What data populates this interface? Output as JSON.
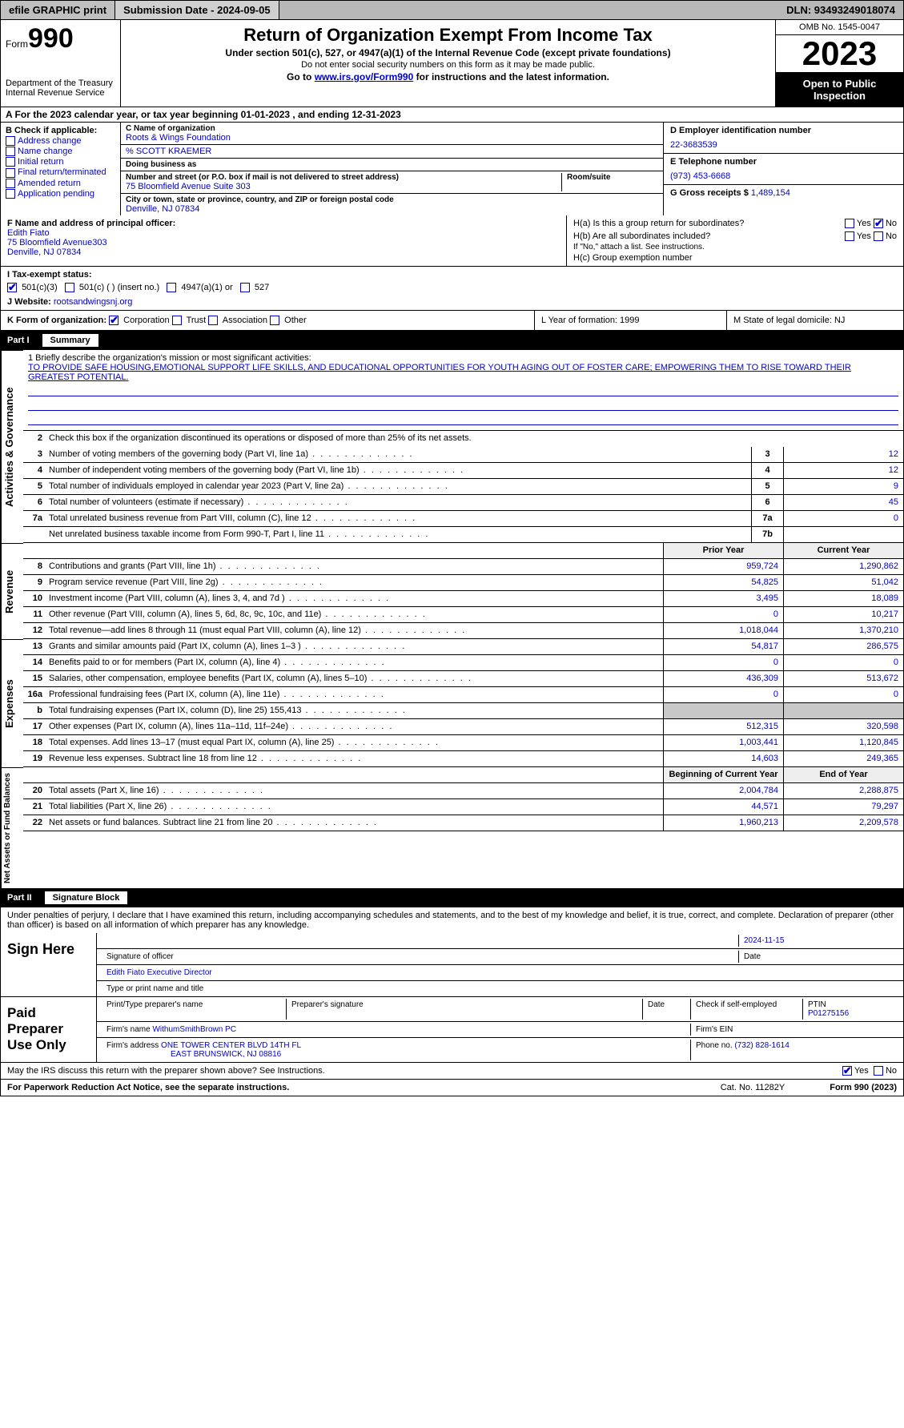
{
  "topbar": {
    "efile": "efile GRAPHIC print",
    "sub_date_label": "Submission Date - 2024-09-05",
    "dln": "DLN: 93493249018074"
  },
  "header": {
    "form_label": "Form",
    "form_num": "990",
    "dept": "Department of the Treasury\nInternal Revenue Service",
    "title": "Return of Organization Exempt From Income Tax",
    "sub1": "Under section 501(c), 527, or 4947(a)(1) of the Internal Revenue Code (except private foundations)",
    "sub2": "Do not enter social security numbers on this form as it may be made public.",
    "sub3_pre": "Go to ",
    "sub3_link": "www.irs.gov/Form990",
    "sub3_post": " for instructions and the latest information.",
    "omb": "OMB No. 1545-0047",
    "year": "2023",
    "open": "Open to Public Inspection"
  },
  "row_a": "A   For the 2023 calendar year, or tax year beginning 01-01-2023   , and ending 12-31-2023",
  "col_b": {
    "title": "B Check if applicable:",
    "opts": [
      "Address change",
      "Name change",
      "Initial return",
      "Final return/terminated",
      "Amended return",
      "Application pending"
    ]
  },
  "col_c": {
    "name_lbl": "C Name of organization",
    "name": "Roots & Wings Foundation",
    "care_of": "% SCOTT KRAEMER",
    "dba_lbl": "Doing business as",
    "dba": "",
    "addr_lbl": "Number and street (or P.O. box if mail is not delivered to street address)",
    "room_lbl": "Room/suite",
    "addr": "75 Bloomfield Avenue Suite 303",
    "city_lbl": "City or town, state or province, country, and ZIP or foreign postal code",
    "city": "Denville, NJ  07834"
  },
  "col_d": {
    "ein_lbl": "D Employer identification number",
    "ein": "22-3683539",
    "tel_lbl": "E Telephone number",
    "tel": "(973) 453-6668",
    "gross_lbl": "G Gross receipts $",
    "gross": "1,489,154"
  },
  "row_f": {
    "lbl": "F  Name and address of principal officer:",
    "name": "Edith Fiato",
    "addr1": "75 Bloomfield Avenue303",
    "addr2": "Denville, NJ  07834"
  },
  "row_h": {
    "ha": "H(a)  Is this a group return for subordinates?",
    "ha_yes": "Yes",
    "ha_no": "No",
    "hb": "H(b)  Are all subordinates included?",
    "hb_yes": "Yes",
    "hb_no": "No",
    "hb_note": "If \"No,\" attach a list. See instructions.",
    "hc": "H(c)  Group exemption number  "
  },
  "row_i": {
    "lbl": "I   Tax-exempt status:",
    "o1": "501(c)(3)",
    "o2": "501(c) (  ) (insert no.)",
    "o3": "4947(a)(1) or",
    "o4": "527"
  },
  "row_j": {
    "lbl": "J   Website: ",
    "val": "rootsandwingsnj.org"
  },
  "row_k": {
    "lbl": "K Form of organization:",
    "o1": "Corporation",
    "o2": "Trust",
    "o3": "Association",
    "o4": "Other"
  },
  "row_l": "L Year of formation: 1999",
  "row_m": "M State of legal domicile: NJ",
  "part1": {
    "tag": "Part I",
    "title": "Summary",
    "mission_lbl": "1   Briefly describe the organization's mission or most significant activities:",
    "mission": "TO PROVIDE SAFE HOUSING,EMOTIONAL SUPPORT LIFE SKILLS, AND EDUCATIONAL OPPORTUNITIES FOR YOUTH AGING OUT OF FOSTER CARE; EMPOWERING THEM TO RISE TOWARD THEIR GREATEST POTENTIAL.",
    "line2": "Check this box      if the organization discontinued its operations or disposed of more than 25% of its net assets."
  },
  "vlabels": {
    "ag": "Activities & Governance",
    "rev": "Revenue",
    "exp": "Expenses",
    "net": "Net Assets or Fund Balances"
  },
  "gov_lines": [
    {
      "n": "3",
      "d": "Number of voting members of the governing body (Part VI, line 1a)",
      "box": "3",
      "v": "12"
    },
    {
      "n": "4",
      "d": "Number of independent voting members of the governing body (Part VI, line 1b)",
      "box": "4",
      "v": "12"
    },
    {
      "n": "5",
      "d": "Total number of individuals employed in calendar year 2023 (Part V, line 2a)",
      "box": "5",
      "v": "9"
    },
    {
      "n": "6",
      "d": "Total number of volunteers (estimate if necessary)",
      "box": "6",
      "v": "45"
    },
    {
      "n": "7a",
      "d": "Total unrelated business revenue from Part VIII, column (C), line 12",
      "box": "7a",
      "v": "0"
    },
    {
      "n": "",
      "d": "Net unrelated business taxable income from Form 990-T, Part I, line 11",
      "box": "7b",
      "v": ""
    }
  ],
  "pycy_header": {
    "py": "Prior Year",
    "cy": "Current Year"
  },
  "rev_lines": [
    {
      "n": "8",
      "d": "Contributions and grants (Part VIII, line 1h)",
      "py": "959,724",
      "cy": "1,290,862"
    },
    {
      "n": "9",
      "d": "Program service revenue (Part VIII, line 2g)",
      "py": "54,825",
      "cy": "51,042"
    },
    {
      "n": "10",
      "d": "Investment income (Part VIII, column (A), lines 3, 4, and 7d )",
      "py": "3,495",
      "cy": "18,089"
    },
    {
      "n": "11",
      "d": "Other revenue (Part VIII, column (A), lines 5, 6d, 8c, 9c, 10c, and 11e)",
      "py": "0",
      "cy": "10,217"
    },
    {
      "n": "12",
      "d": "Total revenue—add lines 8 through 11 (must equal Part VIII, column (A), line 12)",
      "py": "1,018,044",
      "cy": "1,370,210"
    }
  ],
  "exp_lines": [
    {
      "n": "13",
      "d": "Grants and similar amounts paid (Part IX, column (A), lines 1–3 )",
      "py": "54,817",
      "cy": "286,575"
    },
    {
      "n": "14",
      "d": "Benefits paid to or for members (Part IX, column (A), line 4)",
      "py": "0",
      "cy": "0"
    },
    {
      "n": "15",
      "d": "Salaries, other compensation, employee benefits (Part IX, column (A), lines 5–10)",
      "py": "436,309",
      "cy": "513,672"
    },
    {
      "n": "16a",
      "d": "Professional fundraising fees (Part IX, column (A), line 11e)",
      "py": "0",
      "cy": "0"
    },
    {
      "n": "b",
      "d": "Total fundraising expenses (Part IX, column (D), line 25) 155,413",
      "py": "",
      "cy": "",
      "grey": true
    },
    {
      "n": "17",
      "d": "Other expenses (Part IX, column (A), lines 11a–11d, 11f–24e)",
      "py": "512,315",
      "cy": "320,598"
    },
    {
      "n": "18",
      "d": "Total expenses. Add lines 13–17 (must equal Part IX, column (A), line 25)",
      "py": "1,003,441",
      "cy": "1,120,845"
    },
    {
      "n": "19",
      "d": "Revenue less expenses. Subtract line 18 from line 12",
      "py": "14,603",
      "cy": "249,365"
    }
  ],
  "net_header": {
    "py": "Beginning of Current Year",
    "cy": "End of Year"
  },
  "net_lines": [
    {
      "n": "20",
      "d": "Total assets (Part X, line 16)",
      "py": "2,004,784",
      "cy": "2,288,875"
    },
    {
      "n": "21",
      "d": "Total liabilities (Part X, line 26)",
      "py": "44,571",
      "cy": "79,297"
    },
    {
      "n": "22",
      "d": "Net assets or fund balances. Subtract line 21 from line 20",
      "py": "1,960,213",
      "cy": "2,209,578"
    }
  ],
  "part2": {
    "tag": "Part II",
    "title": "Signature Block"
  },
  "disclaimer": "Under penalties of perjury, I declare that I have examined this return, including accompanying schedules and statements, and to the best of my knowledge and belief, it is true, correct, and complete. Declaration of preparer (other than officer) is based on all information of which preparer has any knowledge.",
  "sign": {
    "here": "Sign Here",
    "sig_lbl": "Signature of officer",
    "date": "2024-11-15",
    "name": "Edith Fiato  Executive Director",
    "name_lbl": "Type or print name and title"
  },
  "paid": {
    "lbl": "Paid Preparer Use Only",
    "pname_lbl": "Print/Type preparer's name",
    "psig_lbl": "Preparer's signature",
    "pdate_lbl": "Date",
    "self_lbl": "Check       if self-employed",
    "ptin_lbl": "PTIN",
    "ptin": "P01275156",
    "firm_lbl": "Firm's name    ",
    "firm": "WithumSmithBrown PC",
    "fein_lbl": "Firm's EIN  ",
    "faddr_lbl": "Firm's address ",
    "faddr1": "ONE TOWER CENTER BLVD 14TH FL",
    "faddr2": "EAST BRUNSWICK, NJ  08816",
    "phone_lbl": "Phone no.",
    "phone": "(732) 828-1614"
  },
  "irs_discuss": "May the IRS discuss this return with the preparer shown above? See Instructions.",
  "irs_yes": "Yes",
  "irs_no": "No",
  "footer": {
    "left": "For Paperwork Reduction Act Notice, see the separate instructions.",
    "mid": "Cat. No. 11282Y",
    "right": "Form 990 (2023)"
  },
  "colors": {
    "link": "#0000cc",
    "grey_bg": "#c8c8c8",
    "black": "#000000"
  }
}
